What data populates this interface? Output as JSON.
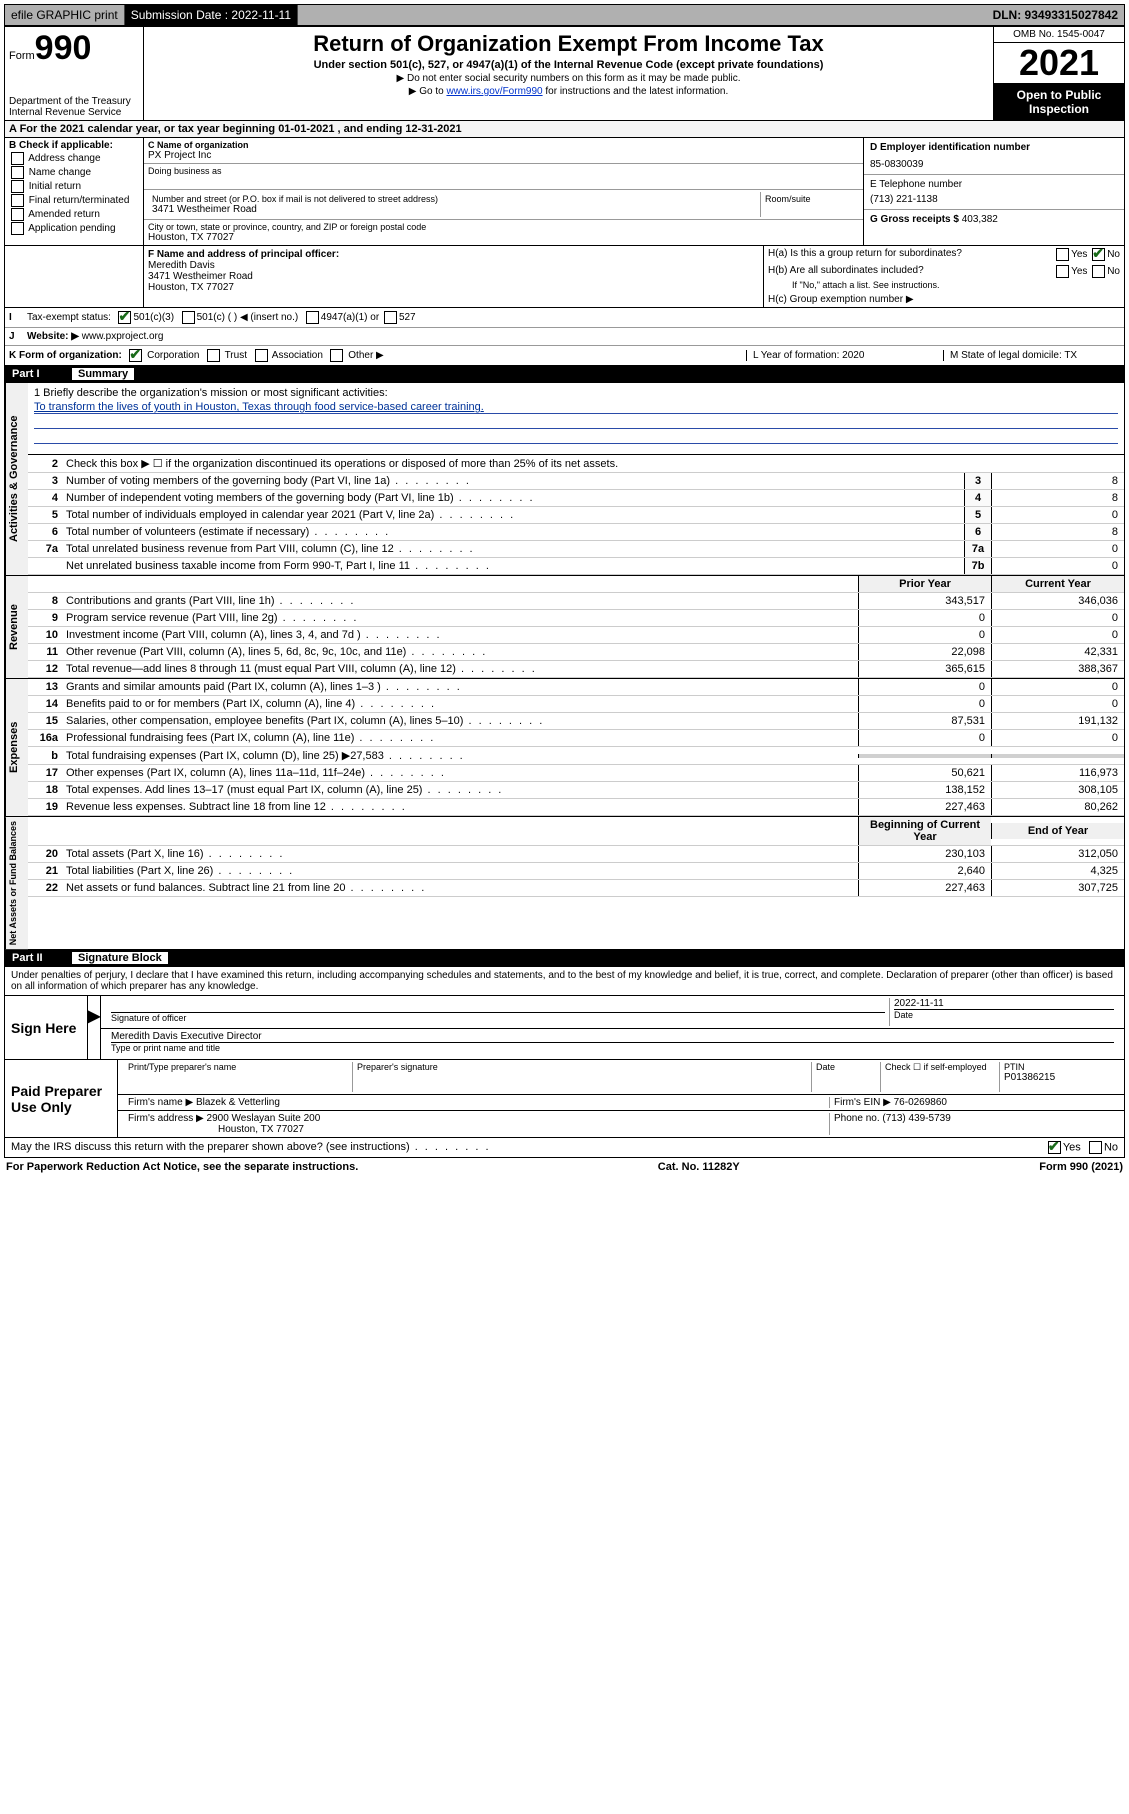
{
  "topbar": {
    "efile": "efile GRAPHIC print",
    "sub_label": "Submission Date : 2022-11-11",
    "dln": "DLN: 93493315027842"
  },
  "header": {
    "form_prefix": "Form",
    "form_number": "990",
    "dept": "Department of the Treasury",
    "irs": "Internal Revenue Service",
    "title": "Return of Organization Exempt From Income Tax",
    "sub": "Under section 501(c), 527, or 4947(a)(1) of the Internal Revenue Code (except private foundations)",
    "note1": "▶ Do not enter social security numbers on this form as it may be made public.",
    "note2_pre": "▶ Go to ",
    "note2_link": "www.irs.gov/Form990",
    "note2_post": " for instructions and the latest information.",
    "omb": "OMB No. 1545-0047",
    "year": "2021",
    "open": "Open to Public Inspection"
  },
  "period": {
    "line": "A For the 2021 calendar year, or tax year beginning 01-01-2021   , and ending 12-31-2021"
  },
  "boxB": {
    "label": "B Check if applicable:",
    "opts": [
      "Address change",
      "Name change",
      "Initial return",
      "Final return/terminated",
      "Amended return",
      "Application pending"
    ]
  },
  "boxC": {
    "name_label": "C Name of organization",
    "name": "PX Project Inc",
    "dba_label": "Doing business as",
    "street_label": "Number and street (or P.O. box if mail is not delivered to street address)",
    "street": "3471 Westheimer Road",
    "room_label": "Room/suite",
    "city_label": "City or town, state or province, country, and ZIP or foreign postal code",
    "city": "Houston, TX  77027"
  },
  "boxD": {
    "label": "D Employer identification number",
    "val": "85-0830039"
  },
  "boxE": {
    "label": "E Telephone number",
    "val": "(713) 221-1138"
  },
  "boxG": {
    "label": "G Gross receipts $",
    "val": "403,382"
  },
  "boxF": {
    "label": "F Name and address of principal officer:",
    "name": "Meredith Davis",
    "street": "3471 Westheimer Road",
    "city": "Houston, TX  77027"
  },
  "boxH": {
    "a": "H(a)  Is this a group return for subordinates?",
    "b": "H(b)  Are all subordinates included?",
    "b_note": "If \"No,\" attach a list. See instructions.",
    "c": "H(c)  Group exemption number ▶",
    "yes": "Yes",
    "no": "No"
  },
  "boxI": {
    "label": "Tax-exempt status:",
    "o1": "501(c)(3)",
    "o2": "501(c) (   ) ◀ (insert no.)",
    "o3": "4947(a)(1) or",
    "o4": "527"
  },
  "boxJ": {
    "label": "Website: ▶",
    "val": "www.pxproject.org"
  },
  "boxK": {
    "label": "K Form of organization:",
    "o1": "Corporation",
    "o2": "Trust",
    "o3": "Association",
    "o4": "Other ▶"
  },
  "boxL": {
    "label": "L Year of formation: 2020"
  },
  "boxM": {
    "label": "M State of legal domicile: TX"
  },
  "parts": {
    "p1": {
      "num": "Part I",
      "title": "Summary"
    },
    "p2": {
      "num": "Part II",
      "title": "Signature Block"
    }
  },
  "mission": {
    "q": "1  Briefly describe the organization's mission or most significant activities:",
    "a": "To transform the lives of youth in Houston, Texas through food service-based career training."
  },
  "line2": "Check this box ▶ ☐  if the organization discontinued its operations or disposed of more than 25% of its net assets.",
  "govLines": [
    {
      "n": "3",
      "d": "Number of voting members of the governing body (Part VI, line 1a)",
      "b": "3",
      "v": "8"
    },
    {
      "n": "4",
      "d": "Number of independent voting members of the governing body (Part VI, line 1b)",
      "b": "4",
      "v": "8"
    },
    {
      "n": "5",
      "d": "Total number of individuals employed in calendar year 2021 (Part V, line 2a)",
      "b": "5",
      "v": "0"
    },
    {
      "n": "6",
      "d": "Total number of volunteers (estimate if necessary)",
      "b": "6",
      "v": "8"
    },
    {
      "n": "7a",
      "d": "Total unrelated business revenue from Part VIII, column (C), line 12",
      "b": "7a",
      "v": "0"
    },
    {
      "n": "",
      "d": "Net unrelated business taxable income from Form 990-T, Part I, line 11",
      "b": "7b",
      "v": "0"
    }
  ],
  "colHead": {
    "prior": "Prior Year",
    "current": "Current Year",
    "boy": "Beginning of Current Year",
    "eoy": "End of Year"
  },
  "revLines": [
    {
      "n": "8",
      "d": "Contributions and grants (Part VIII, line 1h)",
      "p": "343,517",
      "c": "346,036"
    },
    {
      "n": "9",
      "d": "Program service revenue (Part VIII, line 2g)",
      "p": "0",
      "c": "0"
    },
    {
      "n": "10",
      "d": "Investment income (Part VIII, column (A), lines 3, 4, and 7d )",
      "p": "0",
      "c": "0"
    },
    {
      "n": "11",
      "d": "Other revenue (Part VIII, column (A), lines 5, 6d, 8c, 9c, 10c, and 11e)",
      "p": "22,098",
      "c": "42,331"
    },
    {
      "n": "12",
      "d": "Total revenue—add lines 8 through 11 (must equal Part VIII, column (A), line 12)",
      "p": "365,615",
      "c": "388,367"
    }
  ],
  "expLines": [
    {
      "n": "13",
      "d": "Grants and similar amounts paid (Part IX, column (A), lines 1–3 )",
      "p": "0",
      "c": "0"
    },
    {
      "n": "14",
      "d": "Benefits paid to or for members (Part IX, column (A), line 4)",
      "p": "0",
      "c": "0"
    },
    {
      "n": "15",
      "d": "Salaries, other compensation, employee benefits (Part IX, column (A), lines 5–10)",
      "p": "87,531",
      "c": "191,132"
    },
    {
      "n": "16a",
      "d": "Professional fundraising fees (Part IX, column (A), line 11e)",
      "p": "0",
      "c": "0"
    },
    {
      "n": "b",
      "d": "Total fundraising expenses (Part IX, column (D), line 25) ▶27,583",
      "p": "",
      "c": "",
      "gray": true
    },
    {
      "n": "17",
      "d": "Other expenses (Part IX, column (A), lines 11a–11d, 11f–24e)",
      "p": "50,621",
      "c": "116,973"
    },
    {
      "n": "18",
      "d": "Total expenses. Add lines 13–17 (must equal Part IX, column (A), line 25)",
      "p": "138,152",
      "c": "308,105"
    },
    {
      "n": "19",
      "d": "Revenue less expenses. Subtract line 18 from line 12",
      "p": "227,463",
      "c": "80,262"
    }
  ],
  "netLines": [
    {
      "n": "20",
      "d": "Total assets (Part X, line 16)",
      "p": "230,103",
      "c": "312,050"
    },
    {
      "n": "21",
      "d": "Total liabilities (Part X, line 26)",
      "p": "2,640",
      "c": "4,325"
    },
    {
      "n": "22",
      "d": "Net assets or fund balances. Subtract line 21 from line 20",
      "p": "227,463",
      "c": "307,725"
    }
  ],
  "sig": {
    "decl": "Under penalties of perjury, I declare that I have examined this return, including accompanying schedules and statements, and to the best of my knowledge and belief, it is true, correct, and complete. Declaration of preparer (other than officer) is based on all information of which preparer has any knowledge.",
    "sign_here": "Sign Here",
    "sig_officer": "Signature of officer",
    "date": "2022-11-11",
    "date_label": "Date",
    "name_title": "Meredith Davis  Executive Director",
    "name_title_label": "Type or print name and title",
    "paid": "Paid Preparer Use Only",
    "prep_name_label": "Print/Type preparer's name",
    "prep_sig_label": "Preparer's signature",
    "check_self": "Check ☐ if self-employed",
    "ptin_label": "PTIN",
    "ptin": "P01386215",
    "firm_name_label": "Firm's name    ▶",
    "firm_name": "Blazek & Vetterling",
    "firm_ein_label": "Firm's EIN ▶",
    "firm_ein": "76-0269860",
    "firm_addr_label": "Firm's address ▶",
    "firm_addr1": "2900 Weslayan Suite 200",
    "firm_addr2": "Houston, TX  77027",
    "phone_label": "Phone no.",
    "phone": "(713) 439-5739",
    "discuss": "May the IRS discuss this return with the preparer shown above? (see instructions)"
  },
  "footer": {
    "left": "For Paperwork Reduction Act Notice, see the separate instructions.",
    "mid": "Cat. No. 11282Y",
    "right": "Form 990 (2021)"
  },
  "vLabels": {
    "gov": "Activities & Governance",
    "rev": "Revenue",
    "exp": "Expenses",
    "net": "Net Assets or Fund Balances"
  }
}
